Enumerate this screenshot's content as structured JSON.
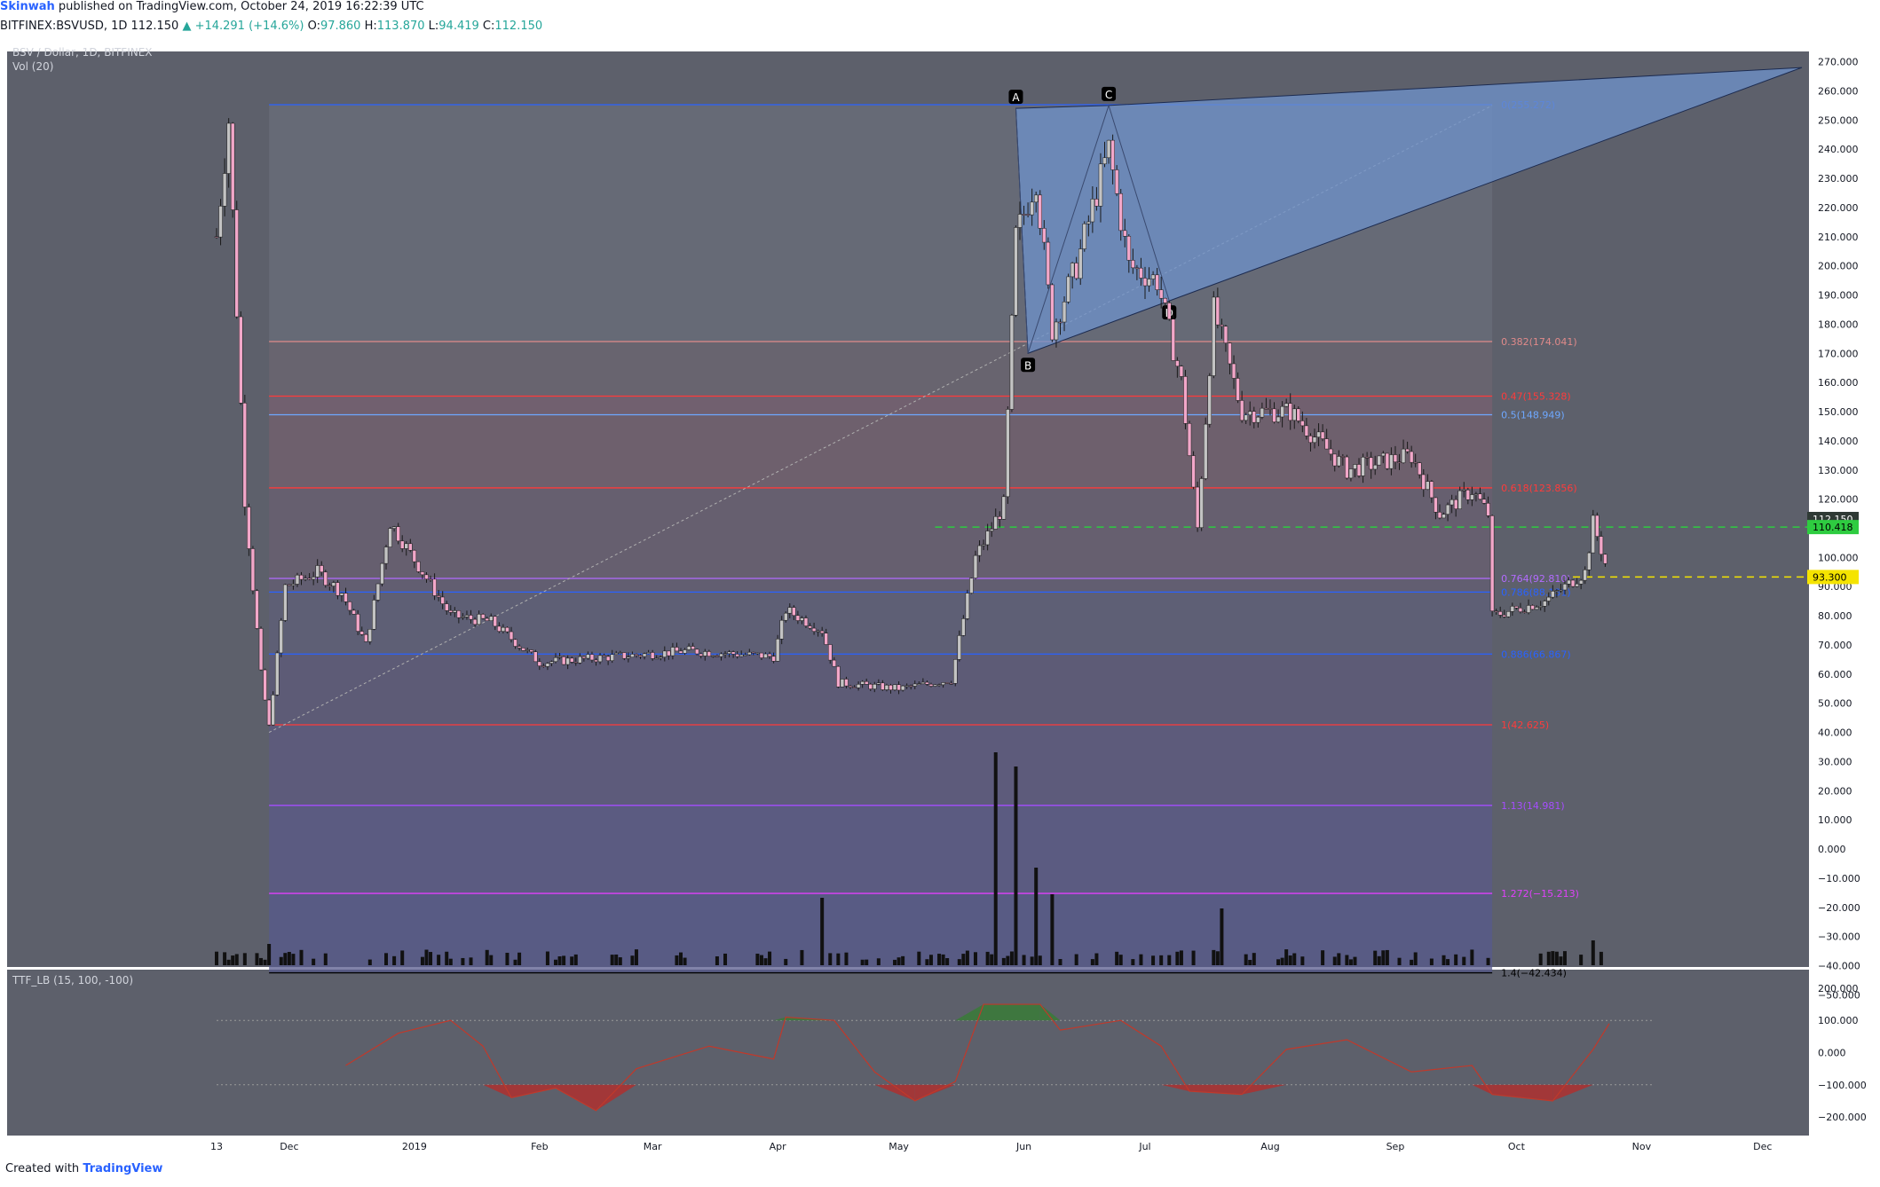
{
  "header": {
    "author": "Skinwah",
    "published": "published on TradingView.com, October 24, 2019 16:22:39 UTC",
    "symbol": "BITFINEX:BSVUSD, 1D",
    "price": "112.150",
    "change": "▲ +14.291 (+14.6%)",
    "o_label": "O:",
    "o": "97.860",
    "h_label": "H:",
    "h": "113.870",
    "l_label": "L:",
    "l": "94.419",
    "c_label": "C:",
    "c": "112.150"
  },
  "pane": {
    "title": "BSV / Dollar, 1D, BITFINEX",
    "volume_label": "Vol (20)",
    "indicator_label": "TTF_LB (15, 100, -100)"
  },
  "footer": {
    "created_with": "Created with",
    "brand": "TradingView"
  },
  "colors": {
    "pane_bg": "#5d606b",
    "up_candle": "#c3c3c3",
    "down_candle": "#f2a7c9",
    "wedge_fill": "#6f93cc",
    "green_line": "#2ecc40",
    "yellow_line": "#f5e400"
  },
  "chart_data": {
    "type": "candlestick",
    "y_axis_ticks": [
      "270.000",
      "260.000",
      "250.000",
      "240.000",
      "230.000",
      "220.000",
      "210.000",
      "200.000",
      "190.000",
      "180.000",
      "170.000",
      "160.000",
      "150.000",
      "140.000",
      "130.000",
      "120.000",
      "110.000",
      "100.000",
      "90.000",
      "80.000",
      "70.000",
      "60.000",
      "50.000",
      "40.000",
      "30.000",
      "20.000",
      "10.000",
      "0.000",
      "−10.000",
      "−20.000",
      "−30.000",
      "−40.000",
      "−50.000"
    ],
    "ylim": [
      -52,
      272
    ],
    "x_axis_labels": [
      "13",
      "Dec",
      "2019",
      "Feb",
      "Mar",
      "Apr",
      "May",
      "Jun",
      "Jul",
      "Aug",
      "Sep",
      "Oct",
      "Nov",
      "Dec"
    ],
    "price_points": [
      {
        "d": "2018-11-13",
        "p": 210
      },
      {
        "d": "2018-11-16",
        "p": 250
      },
      {
        "d": "2018-11-20",
        "p": 120
      },
      {
        "d": "2018-11-24",
        "p": 60
      },
      {
        "d": "2018-11-26",
        "p": 42
      },
      {
        "d": "2018-11-30",
        "p": 90
      },
      {
        "d": "2018-12-08",
        "p": 95
      },
      {
        "d": "2018-12-14",
        "p": 88
      },
      {
        "d": "2018-12-20",
        "p": 70
      },
      {
        "d": "2018-12-26",
        "p": 112
      },
      {
        "d": "2019-01-03",
        "p": 95
      },
      {
        "d": "2019-01-10",
        "p": 80
      },
      {
        "d": "2019-01-20",
        "p": 78
      },
      {
        "d": "2019-02-01",
        "p": 64
      },
      {
        "d": "2019-02-20",
        "p": 66
      },
      {
        "d": "2019-03-10",
        "p": 68
      },
      {
        "d": "2019-03-31",
        "p": 66
      },
      {
        "d": "2019-04-03",
        "p": 82
      },
      {
        "d": "2019-04-12",
        "p": 75
      },
      {
        "d": "2019-04-16",
        "p": 57
      },
      {
        "d": "2019-05-01",
        "p": 55
      },
      {
        "d": "2019-05-14",
        "p": 58
      },
      {
        "d": "2019-05-20",
        "p": 100
      },
      {
        "d": "2019-05-27",
        "p": 118
      },
      {
        "d": "2019-05-30",
        "p": 210
      },
      {
        "d": "2019-06-04",
        "p": 230
      },
      {
        "d": "2019-06-08",
        "p": 178
      },
      {
        "d": "2019-06-14",
        "p": 200
      },
      {
        "d": "2019-06-22",
        "p": 240
      },
      {
        "d": "2019-06-27",
        "p": 200
      },
      {
        "d": "2019-07-04",
        "p": 195
      },
      {
        "d": "2019-07-10",
        "p": 160
      },
      {
        "d": "2019-07-14",
        "p": 110
      },
      {
        "d": "2019-07-18",
        "p": 185
      },
      {
        "d": "2019-07-25",
        "p": 150
      },
      {
        "d": "2019-08-06",
        "p": 150
      },
      {
        "d": "2019-08-20",
        "p": 130
      },
      {
        "d": "2019-09-05",
        "p": 135
      },
      {
        "d": "2019-09-12",
        "p": 115
      },
      {
        "d": "2019-09-20",
        "p": 123
      },
      {
        "d": "2019-09-24",
        "p": 115
      },
      {
        "d": "2019-09-25",
        "p": 80
      },
      {
        "d": "2019-10-08",
        "p": 85
      },
      {
        "d": "2019-10-18",
        "p": 95
      },
      {
        "d": "2019-10-20",
        "p": 112
      },
      {
        "d": "2019-10-23",
        "p": 98
      },
      {
        "d": "2019-10-24",
        "p": 112.15
      }
    ],
    "fib_levels": [
      {
        "label": "0(255.272)",
        "value": 255.272,
        "color": "#2962ff"
      },
      {
        "label": "0.382(174.041)",
        "value": 174.041,
        "color": "#e08a8a"
      },
      {
        "label": "0.47(155.328)",
        "value": 155.328,
        "color": "#ff3b3b"
      },
      {
        "label": "0.5(148.949)",
        "value": 148.949,
        "color": "#6ea8ff"
      },
      {
        "label": "0.618(123.856)",
        "value": 123.856,
        "color": "#ff3b3b"
      },
      {
        "label": "0.764(92.810)",
        "value": 92.81,
        "color": "#b36bff"
      },
      {
        "label": "0.786(88.131)",
        "value": 88.131,
        "color": "#2962ff"
      },
      {
        "label": "0.886(66.867)",
        "value": 66.867,
        "color": "#2962ff"
      },
      {
        "label": "1(42.625)",
        "value": 42.625,
        "color": "#ff3b3b"
      },
      {
        "label": "1.13(14.981)",
        "value": 14.981,
        "color": "#a64dff"
      },
      {
        "label": "1.272(−15.213)",
        "value": -15.213,
        "color": "#e040fb"
      },
      {
        "label": "1.4(−42.434)",
        "value": -42.434,
        "color": "#000000"
      }
    ],
    "pattern_points": [
      {
        "label": "A",
        "d": "2019-05-30",
        "p": 254
      },
      {
        "label": "B",
        "d": "2019-06-02",
        "p": 170
      },
      {
        "label": "C",
        "d": "2019-06-22",
        "p": 255
      },
      {
        "label": "D",
        "d": "2019-07-07",
        "p": 188
      }
    ],
    "price_label": "112.150",
    "green_level": {
      "label": "110.418",
      "value": 110.418
    },
    "yellow_level": {
      "label": "93.300",
      "value": 93.3
    },
    "volume_points": [
      {
        "d": "2018-11-26",
        "v": 12
      },
      {
        "d": "2019-04-12",
        "v": 38
      },
      {
        "d": "2019-05-25",
        "v": 120
      },
      {
        "d": "2019-05-30",
        "v": 112
      },
      {
        "d": "2019-06-04",
        "v": 55
      },
      {
        "d": "2019-06-08",
        "v": 40
      },
      {
        "d": "2019-07-20",
        "v": 32
      },
      {
        "d": "2019-10-20",
        "v": 14
      }
    ],
    "indicator": {
      "y_ticks": [
        "200.000",
        "100.000",
        "0.000",
        "−100.000",
        "−200.000"
      ],
      "ylim": [
        -230,
        230
      ],
      "points": [
        {
          "d": "2018-12-15",
          "v": -40
        },
        {
          "d": "2018-12-28",
          "v": 60
        },
        {
          "d": "2019-01-10",
          "v": 100
        },
        {
          "d": "2019-01-18",
          "v": 20
        },
        {
          "d": "2019-01-25",
          "v": -140
        },
        {
          "d": "2019-02-05",
          "v": -110
        },
        {
          "d": "2019-02-15",
          "v": -180
        },
        {
          "d": "2019-02-25",
          "v": -50
        },
        {
          "d": "2019-03-15",
          "v": 20
        },
        {
          "d": "2019-03-31",
          "v": -20
        },
        {
          "d": "2019-04-03",
          "v": 110
        },
        {
          "d": "2019-04-15",
          "v": 100
        },
        {
          "d": "2019-04-25",
          "v": -60
        },
        {
          "d": "2019-05-05",
          "v": -150
        },
        {
          "d": "2019-05-15",
          "v": -90
        },
        {
          "d": "2019-05-22",
          "v": 150
        },
        {
          "d": "2019-06-05",
          "v": 150
        },
        {
          "d": "2019-06-10",
          "v": 70
        },
        {
          "d": "2019-06-25",
          "v": 100
        },
        {
          "d": "2019-07-05",
          "v": 20
        },
        {
          "d": "2019-07-12",
          "v": -120
        },
        {
          "d": "2019-07-25",
          "v": -130
        },
        {
          "d": "2019-08-05",
          "v": 10
        },
        {
          "d": "2019-08-20",
          "v": 40
        },
        {
          "d": "2019-09-05",
          "v": -60
        },
        {
          "d": "2019-09-20",
          "v": -40
        },
        {
          "d": "2019-09-25",
          "v": -130
        },
        {
          "d": "2019-10-10",
          "v": -150
        },
        {
          "d": "2019-10-20",
          "v": 10
        },
        {
          "d": "2019-10-24",
          "v": 90
        }
      ]
    }
  }
}
